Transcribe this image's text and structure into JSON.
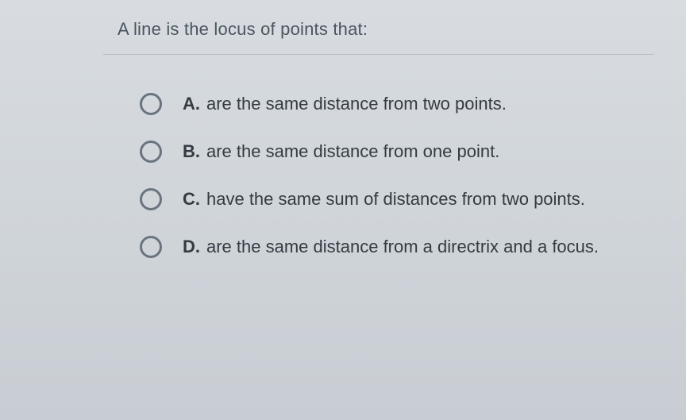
{
  "question": {
    "prompt": "A line is the locus of points that:"
  },
  "options": [
    {
      "letter": "A.",
      "text": "are the same distance from two points.",
      "selected": false
    },
    {
      "letter": "B.",
      "text": "are the same distance from one point.",
      "selected": false
    },
    {
      "letter": "C.",
      "text": "have the same sum of distances from two points.",
      "selected": false
    },
    {
      "letter": "D.",
      "text": "are the same distance from a directrix and a focus.",
      "selected": false
    }
  ],
  "styling": {
    "background_color": "#d0d5da",
    "question_font_size": 22,
    "question_color": "#4a5560",
    "option_font_size": 22,
    "option_color": "#333a42",
    "radio_border_color": "#6a7480",
    "radio_size": 28,
    "divider_color": "#b8bec5"
  }
}
